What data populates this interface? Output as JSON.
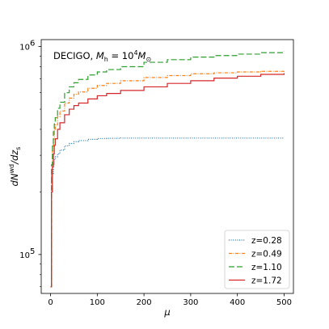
{
  "chart_data": {
    "type": "line",
    "title": "DECIGO, M_h = 10^4 M_⊙",
    "title_parts": {
      "prefix": "DECIGO, ",
      "m": "M",
      "h_sub": "h",
      "equals": " = 10",
      "exp": "4",
      "m2": "M",
      "sun_sub": "⊙"
    },
    "xlabel": "μ",
    "ylabel": "dN^{wd}/dz_s",
    "ylabel_parts": {
      "d1": "d",
      "N": "N",
      "sup": "wd",
      "slash": "/dz",
      "sub": "s"
    },
    "xlim": [
      -20,
      520
    ],
    "ylim": [
      65000,
      1080000
    ],
    "yscale": "log",
    "grid": false,
    "legend_position": "lower right",
    "x_ticks": [
      0,
      100,
      200,
      300,
      400,
      500
    ],
    "x_tick_labels": [
      "0",
      "100",
      "200",
      "300",
      "400",
      "500"
    ],
    "y_ticks": [
      100000,
      1000000
    ],
    "y_tick_labels": [
      {
        "base": "10",
        "exp": "5"
      },
      {
        "base": "10",
        "exp": "6"
      }
    ],
    "x": [
      0,
      2,
      4,
      6,
      8,
      10,
      15,
      20,
      30,
      40,
      50,
      60,
      80,
      100,
      120,
      150,
      200,
      250,
      300,
      350,
      400,
      450,
      500
    ],
    "series": [
      {
        "name": "z=0.28",
        "color": "#1f77b4",
        "dash": "dotted",
        "values": [
          70000,
          200000,
          245000,
          270000,
          285000,
          295000,
          305000,
          318000,
          333000,
          342000,
          349000,
          353000,
          358000,
          361000,
          362000,
          363000,
          363000,
          363000,
          363000,
          363000,
          363000,
          363000,
          363000
        ]
      },
      {
        "name": "z=0.49",
        "color": "#ff7f0e",
        "dash": "dashdot",
        "values": [
          70000,
          250000,
          315000,
          360000,
          395000,
          420000,
          460000,
          490000,
          535000,
          565000,
          590000,
          605000,
          630000,
          650000,
          665000,
          685000,
          710000,
          725000,
          740000,
          748000,
          755000,
          760000,
          762000
        ]
      },
      {
        "name": "z=1.10",
        "color": "#2ca02c",
        "dash": "longdash",
        "values": [
          70000,
          270000,
          340000,
          390000,
          425000,
          455000,
          505000,
          540000,
          600000,
          640000,
          670000,
          695000,
          730000,
          755000,
          775000,
          800000,
          840000,
          865000,
          890000,
          905000,
          920000,
          935000,
          950000
        ]
      },
      {
        "name": "z=1.72",
        "color": "#d62728",
        "dash": "solid",
        "values": [
          70000,
          200000,
          265000,
          305000,
          335000,
          360000,
          400000,
          430000,
          470000,
          500000,
          520000,
          535000,
          560000,
          580000,
          595000,
          615000,
          640000,
          665000,
          685000,
          705000,
          720000,
          735000,
          745000
        ]
      }
    ]
  }
}
